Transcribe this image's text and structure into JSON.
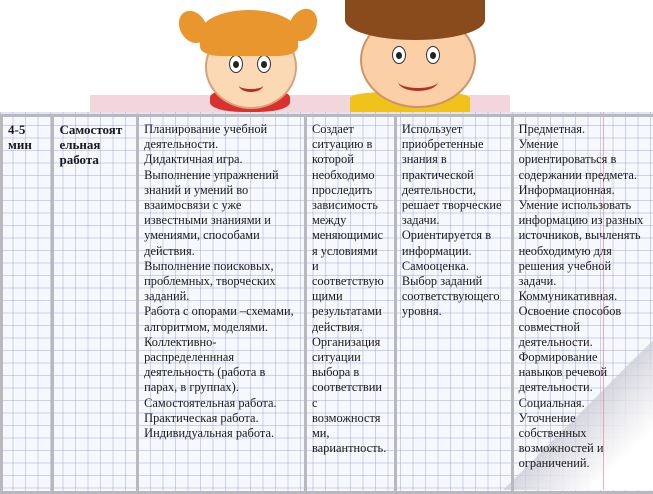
{
  "table": {
    "row": {
      "time": [
        "4-5",
        "мин"
      ],
      "stage": [
        "Самостоят",
        "ельная",
        "работа"
      ],
      "methods": [
        "Планирование учебной",
        "деятельности.",
        "Дидактичная игра.",
        "Выполнение упражнений",
        "знаний и умений во",
        "взаимосвязи с уже",
        "известными знаниями и",
        "умениями, способами",
        "действия.",
        "Выполнение поисковых,",
        "проблемных, творческих",
        "заданий.",
        "Работа с опорами –схемами,",
        "алгоритмом, моделями.",
        "Коллективно-",
        "распределеннная",
        "деятельность (работа в",
        "парах, в группах).",
        "Самостоятельная работа.",
        "Практическая работа.",
        "Индивидуальная работа."
      ],
      "teacher": [
        "Создает",
        "ситуацию в",
        "которой",
        "необходимо",
        "проследить",
        "зависимость",
        "между",
        "меняющимис",
        "я условиями",
        "и",
        "соответствую",
        "щими",
        "результатами",
        "действия.",
        "Организация",
        "ситуации",
        "выбора в",
        "соответствии",
        "с",
        "возможностя",
        "ми,",
        "вариантность."
      ],
      "student": [
        "Использует",
        "приобретенные",
        "знания в",
        "практической",
        "деятельности,",
        "решает творческие",
        "задачи.",
        "Ориентируется в",
        "информации.",
        "Самооценка.",
        "Выбор заданий",
        "соответствующего",
        "уровня."
      ],
      "skills": [
        "Предметная.",
        "Умение",
        "ориентироваться в",
        "содержании предмета.",
        "Информационная.",
        "Умение использовать",
        "информацию из разных",
        "источников, вычленять",
        "необходимую для",
        "решения учебной",
        "задачи.",
        "Коммуникативная.",
        "Освоение способов",
        "совместной",
        "деятельности.",
        "Формирование",
        "навыков речевой",
        "деятельности.",
        "Социальная.",
        "Уточнение",
        "собственных",
        "возможностей и",
        "ограничений."
      ]
    }
  }
}
